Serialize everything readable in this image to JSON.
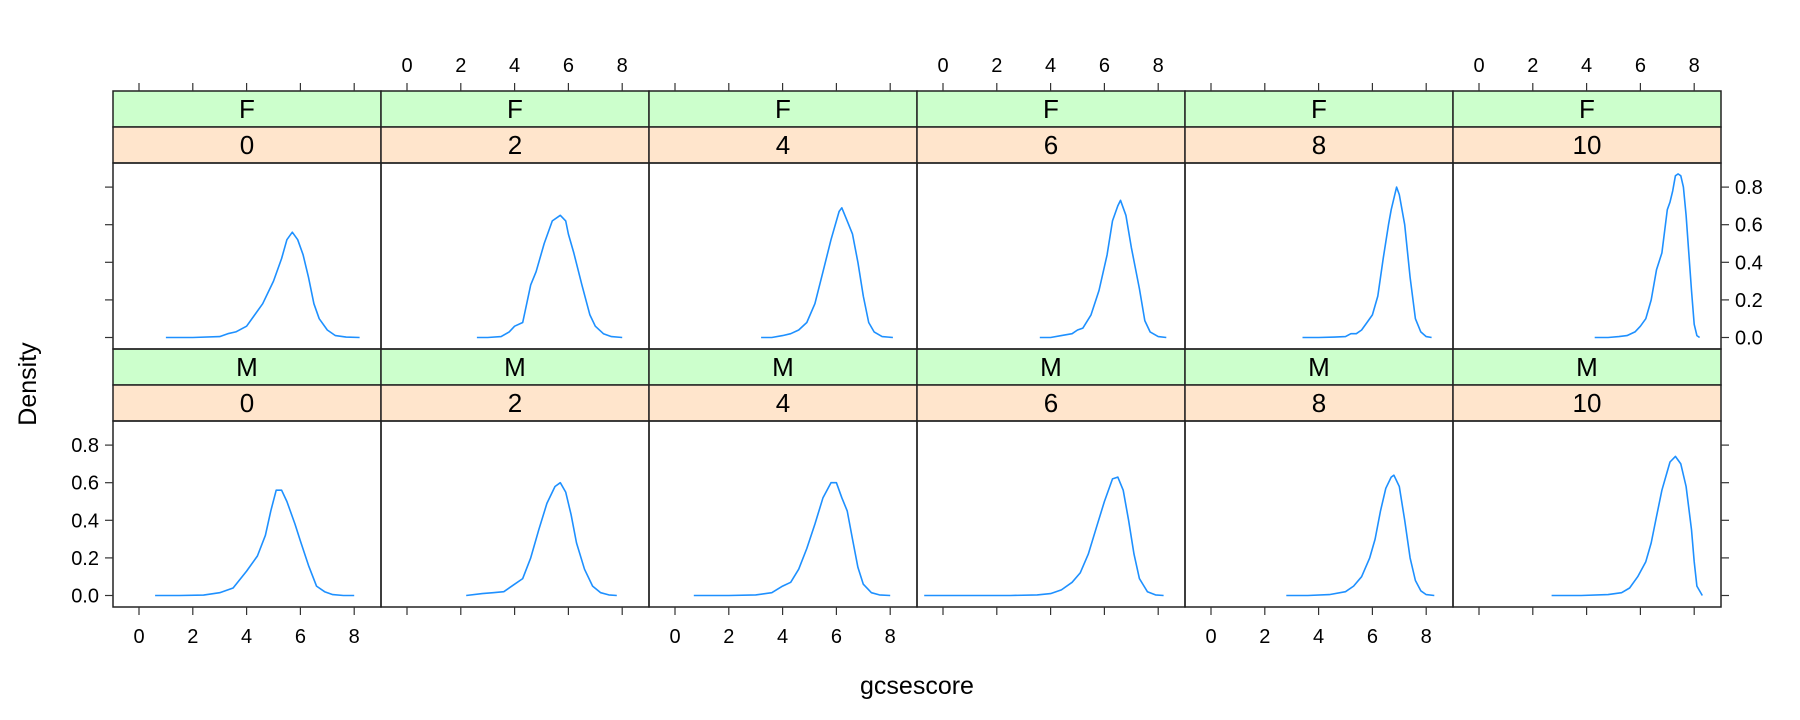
{
  "chart_data": {
    "type": "line",
    "subtype": "density (lattice densityplot, 2x6 panels)",
    "xlabel": "gcsescore",
    "ylabel": "Density",
    "xlim": [
      -0.9,
      9.0
    ],
    "ylim": [
      -0.05,
      0.93
    ],
    "x_ticks": [
      0,
      2,
      4,
      6,
      8
    ],
    "y_ticks": [
      0.0,
      0.2,
      0.4,
      0.6,
      0.8
    ],
    "y_tick_labels": [
      "0.0",
      "0.2",
      "0.4",
      "0.6",
      "0.8"
    ],
    "line_color": "#1E90FF",
    "strip_colors": {
      "outer": "#CCFFCC",
      "inner": "#FFE5CC"
    },
    "legend": null,
    "panels": [
      {
        "gender": "F",
        "score": "0",
        "row": 0,
        "col": 0,
        "x": [
          1.0,
          2.0,
          3.0,
          3.3,
          3.6,
          4.0,
          4.3,
          4.6,
          5.0,
          5.3,
          5.5,
          5.7,
          5.9,
          6.1,
          6.3,
          6.5,
          6.7,
          7.0,
          7.3,
          7.7,
          8.2
        ],
        "y": [
          0.0,
          0.0,
          0.005,
          0.02,
          0.03,
          0.06,
          0.12,
          0.18,
          0.3,
          0.42,
          0.52,
          0.56,
          0.52,
          0.44,
          0.32,
          0.18,
          0.1,
          0.04,
          0.01,
          0.002,
          0.0
        ]
      },
      {
        "gender": "F",
        "score": "2",
        "row": 0,
        "col": 1,
        "x": [
          2.6,
          3.0,
          3.5,
          3.8,
          4.0,
          4.3,
          4.6,
          4.8,
          5.1,
          5.4,
          5.7,
          5.9,
          6.0,
          6.2,
          6.5,
          6.8,
          7.0,
          7.3,
          7.6,
          8.0
        ],
        "y": [
          0.0,
          0.0,
          0.005,
          0.03,
          0.06,
          0.08,
          0.28,
          0.35,
          0.5,
          0.62,
          0.65,
          0.62,
          0.55,
          0.45,
          0.28,
          0.12,
          0.06,
          0.02,
          0.005,
          0.0
        ]
      },
      {
        "gender": "F",
        "score": "4",
        "row": 0,
        "col": 2,
        "x": [
          3.2,
          3.6,
          4.0,
          4.3,
          4.6,
          4.9,
          5.2,
          5.5,
          5.8,
          6.1,
          6.2,
          6.4,
          6.6,
          6.8,
          7.0,
          7.2,
          7.4,
          7.7,
          8.1
        ],
        "y": [
          0.0,
          0.0,
          0.01,
          0.02,
          0.04,
          0.08,
          0.18,
          0.35,
          0.52,
          0.67,
          0.69,
          0.62,
          0.55,
          0.4,
          0.22,
          0.08,
          0.03,
          0.005,
          0.0
        ]
      },
      {
        "gender": "F",
        "score": "6",
        "row": 0,
        "col": 3,
        "x": [
          3.6,
          4.0,
          4.4,
          4.8,
          5.0,
          5.2,
          5.5,
          5.8,
          6.1,
          6.3,
          6.5,
          6.6,
          6.8,
          7.0,
          7.3,
          7.5,
          7.7,
          8.0,
          8.3
        ],
        "y": [
          0.0,
          0.0,
          0.01,
          0.02,
          0.04,
          0.05,
          0.12,
          0.25,
          0.44,
          0.62,
          0.7,
          0.73,
          0.65,
          0.48,
          0.26,
          0.09,
          0.03,
          0.005,
          0.0
        ]
      },
      {
        "gender": "F",
        "score": "8",
        "row": 0,
        "col": 4,
        "x": [
          3.4,
          4.0,
          4.6,
          5.0,
          5.2,
          5.4,
          5.6,
          5.8,
          6.0,
          6.2,
          6.4,
          6.6,
          6.7,
          6.9,
          7.0,
          7.2,
          7.4,
          7.6,
          7.8,
          8.0,
          8.2
        ],
        "y": [
          0.0,
          0.0,
          0.002,
          0.005,
          0.02,
          0.02,
          0.04,
          0.08,
          0.12,
          0.22,
          0.42,
          0.6,
          0.68,
          0.8,
          0.76,
          0.6,
          0.32,
          0.1,
          0.03,
          0.005,
          0.0
        ]
      },
      {
        "gender": "F",
        "score": "10",
        "row": 0,
        "col": 5,
        "x": [
          4.3,
          4.8,
          5.2,
          5.5,
          5.8,
          6.0,
          6.2,
          6.4,
          6.6,
          6.8,
          7.0,
          7.1,
          7.2,
          7.3,
          7.4,
          7.5,
          7.6,
          7.7,
          7.8,
          7.9,
          8.0,
          8.1,
          8.2
        ],
        "y": [
          0.0,
          0.0,
          0.005,
          0.01,
          0.03,
          0.06,
          0.1,
          0.2,
          0.36,
          0.45,
          0.68,
          0.72,
          0.78,
          0.86,
          0.87,
          0.86,
          0.8,
          0.65,
          0.45,
          0.25,
          0.07,
          0.01,
          0.0
        ]
      },
      {
        "gender": "M",
        "score": "0",
        "row": 1,
        "col": 0,
        "x": [
          0.6,
          1.5,
          2.4,
          3.0,
          3.5,
          4.0,
          4.4,
          4.7,
          4.9,
          5.1,
          5.3,
          5.5,
          5.8,
          6.0,
          6.3,
          6.6,
          6.9,
          7.2,
          7.6,
          8.0
        ],
        "y": [
          0.0,
          0.0,
          0.002,
          0.015,
          0.04,
          0.13,
          0.21,
          0.32,
          0.45,
          0.56,
          0.56,
          0.5,
          0.38,
          0.29,
          0.16,
          0.05,
          0.02,
          0.005,
          0.0,
          0.0
        ]
      },
      {
        "gender": "M",
        "score": "2",
        "row": 1,
        "col": 1,
        "x": [
          2.2,
          2.8,
          3.2,
          3.6,
          4.0,
          4.3,
          4.6,
          4.9,
          5.2,
          5.5,
          5.7,
          5.9,
          6.1,
          6.3,
          6.6,
          6.9,
          7.2,
          7.5,
          7.8
        ],
        "y": [
          0.0,
          0.01,
          0.015,
          0.02,
          0.06,
          0.09,
          0.2,
          0.35,
          0.49,
          0.58,
          0.6,
          0.55,
          0.43,
          0.28,
          0.14,
          0.05,
          0.015,
          0.003,
          0.0
        ]
      },
      {
        "gender": "M",
        "score": "4",
        "row": 1,
        "col": 2,
        "x": [
          0.7,
          2.0,
          3.0,
          3.6,
          4.0,
          4.3,
          4.6,
          4.9,
          5.2,
          5.5,
          5.8,
          6.0,
          6.2,
          6.4,
          6.6,
          6.8,
          7.0,
          7.3,
          7.6,
          8.0
        ],
        "y": [
          0.0,
          0.0,
          0.003,
          0.015,
          0.05,
          0.07,
          0.14,
          0.25,
          0.38,
          0.52,
          0.6,
          0.6,
          0.52,
          0.45,
          0.3,
          0.15,
          0.06,
          0.015,
          0.003,
          0.0
        ]
      },
      {
        "gender": "M",
        "score": "6",
        "row": 1,
        "col": 3,
        "x": [
          -0.7,
          1.0,
          2.5,
          3.5,
          4.0,
          4.4,
          4.8,
          5.1,
          5.4,
          5.7,
          6.0,
          6.3,
          6.5,
          6.7,
          6.9,
          7.1,
          7.3,
          7.6,
          7.9,
          8.2
        ],
        "y": [
          0.0,
          0.0,
          0.0,
          0.003,
          0.01,
          0.03,
          0.07,
          0.12,
          0.22,
          0.36,
          0.5,
          0.62,
          0.63,
          0.56,
          0.4,
          0.22,
          0.09,
          0.02,
          0.003,
          0.0
        ]
      },
      {
        "gender": "M",
        "score": "8",
        "row": 1,
        "col": 4,
        "x": [
          2.8,
          3.6,
          4.4,
          5.0,
          5.3,
          5.6,
          5.9,
          6.1,
          6.3,
          6.5,
          6.7,
          6.8,
          7.0,
          7.2,
          7.4,
          7.6,
          7.8,
          8.0,
          8.3
        ],
        "y": [
          0.0,
          0.0,
          0.005,
          0.02,
          0.05,
          0.1,
          0.2,
          0.3,
          0.45,
          0.57,
          0.63,
          0.64,
          0.58,
          0.4,
          0.2,
          0.08,
          0.025,
          0.005,
          0.0
        ]
      },
      {
        "gender": "M",
        "score": "10",
        "row": 1,
        "col": 5,
        "x": [
          2.7,
          3.8,
          4.8,
          5.3,
          5.6,
          5.9,
          6.2,
          6.4,
          6.6,
          6.8,
          7.0,
          7.1,
          7.3,
          7.5,
          7.7,
          7.9,
          8.0,
          8.1,
          8.3
        ],
        "y": [
          0.0,
          0.0,
          0.005,
          0.015,
          0.04,
          0.1,
          0.18,
          0.28,
          0.42,
          0.56,
          0.66,
          0.71,
          0.74,
          0.7,
          0.58,
          0.35,
          0.18,
          0.05,
          0.0
        ]
      }
    ]
  }
}
